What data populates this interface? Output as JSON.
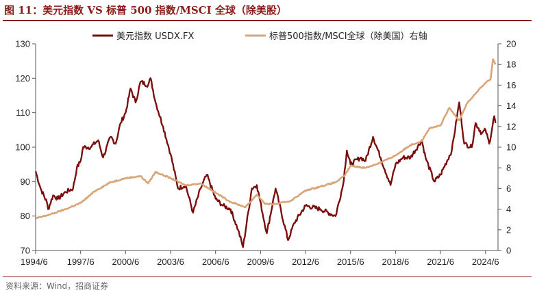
{
  "figure": {
    "title": "图 11：美元指数 VS 标普 500 指数/MSCI 全球（除美股）",
    "source": "资料来源：Wind，招商证券"
  },
  "chart_data": {
    "type": "line",
    "x_ticks": [
      "1994/6",
      "1997/6",
      "2000/6",
      "2003/6",
      "2006/6",
      "2009/6",
      "2012/6",
      "2015/6",
      "2018/6",
      "2021/6",
      "2024/6"
    ],
    "y_left": {
      "ylim": [
        70,
        130
      ],
      "ticks": [
        "70",
        "80",
        "90",
        "100",
        "110",
        "120",
        "130"
      ]
    },
    "y_right": {
      "ylim": [
        0,
        20
      ],
      "ticks": [
        "0",
        "2",
        "4",
        "6",
        "8",
        "10",
        "12",
        "14",
        "16",
        "18",
        "20"
      ]
    },
    "grid": false,
    "legend_position": "top",
    "series": [
      {
        "name": "美元指数 USDX.FX",
        "axis": "left",
        "color": "#7b0d0d",
        "points": [
          [
            "1994/6",
            93
          ],
          [
            "1994/10",
            88
          ],
          [
            "1995/3",
            84
          ],
          [
            "1995/4",
            82
          ],
          [
            "1995/8",
            86
          ],
          [
            "1995/12",
            85
          ],
          [
            "1996/6",
            87
          ],
          [
            "1996/12",
            88
          ],
          [
            "1997/3",
            94
          ],
          [
            "1997/6",
            96
          ],
          [
            "1997/8",
            100
          ],
          [
            "1998/2",
            100
          ],
          [
            "1998/8",
            102
          ],
          [
            "1998/12",
            97
          ],
          [
            "1999/6",
            103
          ],
          [
            "1999/10",
            101
          ],
          [
            "2000/2",
            107
          ],
          [
            "2000/6",
            110
          ],
          [
            "2000/10",
            117
          ],
          [
            "2001/2",
            113
          ],
          [
            "2001/6",
            119
          ],
          [
            "2001/12",
            118
          ],
          [
            "2002/2",
            120
          ],
          [
            "2002/6",
            113
          ],
          [
            "2002/12",
            106
          ],
          [
            "2003/6",
            98
          ],
          [
            "2003/12",
            88
          ],
          [
            "2004/6",
            89
          ],
          [
            "2004/12",
            81
          ],
          [
            "2005/6",
            88
          ],
          [
            "2005/11",
            92
          ],
          [
            "2006/6",
            85
          ],
          [
            "2006/12",
            83
          ],
          [
            "2007/6",
            82
          ],
          [
            "2007/12",
            76
          ],
          [
            "2008/4",
            71
          ],
          [
            "2008/11",
            88
          ],
          [
            "2009/3",
            89
          ],
          [
            "2009/11",
            75
          ],
          [
            "2010/6",
            88
          ],
          [
            "2011/4",
            73
          ],
          [
            "2011/9",
            78
          ],
          [
            "2012/6",
            83
          ],
          [
            "2013/6",
            82
          ],
          [
            "2014/6",
            80
          ],
          [
            "2014/12",
            89
          ],
          [
            "2015/3",
            99
          ],
          [
            "2015/6",
            95
          ],
          [
            "2016/2",
            97
          ],
          [
            "2016/6",
            96
          ],
          [
            "2016/12",
            103
          ],
          [
            "2017/6",
            97
          ],
          [
            "2018/2",
            89
          ],
          [
            "2018/6",
            95
          ],
          [
            "2018/12",
            97
          ],
          [
            "2019/6",
            97
          ],
          [
            "2020/3",
            102
          ],
          [
            "2020/6",
            97
          ],
          [
            "2021/1",
            90
          ],
          [
            "2021/6",
            92
          ],
          [
            "2022/3",
            99
          ],
          [
            "2022/9",
            113
          ],
          [
            "2023/1",
            101
          ],
          [
            "2023/7",
            100
          ],
          [
            "2023/10",
            107
          ],
          [
            "2024/3",
            104
          ],
          [
            "2024/6",
            105
          ],
          [
            "2024/9",
            101
          ],
          [
            "2025/1",
            109
          ],
          [
            "2025/2",
            107
          ]
        ]
      },
      {
        "name": "标普500指数/MSCI全球（除美国）右轴",
        "axis": "right",
        "color": "#d9a577",
        "points": [
          [
            "1994/6",
            3.1
          ],
          [
            "1995/6",
            3.5
          ],
          [
            "1996/6",
            4.0
          ],
          [
            "1997/6",
            4.6
          ],
          [
            "1998/6",
            5.8
          ],
          [
            "1999/6",
            6.6
          ],
          [
            "2000/6",
            7.0
          ],
          [
            "2001/6",
            7.2
          ],
          [
            "2001/12",
            6.5
          ],
          [
            "2002/6",
            7.6
          ],
          [
            "2003/6",
            7.0
          ],
          [
            "2004/6",
            6.3
          ],
          [
            "2005/6",
            6.5
          ],
          [
            "2006/6",
            5.6
          ],
          [
            "2007/6",
            4.7
          ],
          [
            "2008/6",
            4.2
          ],
          [
            "2009/3",
            5.4
          ],
          [
            "2009/10",
            4.5
          ],
          [
            "2010/6",
            4.5
          ],
          [
            "2011/6",
            4.8
          ],
          [
            "2012/6",
            5.8
          ],
          [
            "2013/6",
            6.2
          ],
          [
            "2014/6",
            6.6
          ],
          [
            "2015/1",
            7.2
          ],
          [
            "2015/6",
            8.2
          ],
          [
            "2016/6",
            8.0
          ],
          [
            "2017/6",
            8.5
          ],
          [
            "2018/6",
            9.2
          ],
          [
            "2019/6",
            10.2
          ],
          [
            "2020/3",
            10.6
          ],
          [
            "2020/9",
            11.8
          ],
          [
            "2021/6",
            12.1
          ],
          [
            "2022/1",
            13.8
          ],
          [
            "2022/9",
            12.6
          ],
          [
            "2023/3",
            14.2
          ],
          [
            "2024/1",
            15.6
          ],
          [
            "2024/6",
            16.2
          ],
          [
            "2024/10",
            16.6
          ],
          [
            "2024/12",
            18.5
          ],
          [
            "2025/2",
            18.0
          ]
        ]
      }
    ]
  }
}
